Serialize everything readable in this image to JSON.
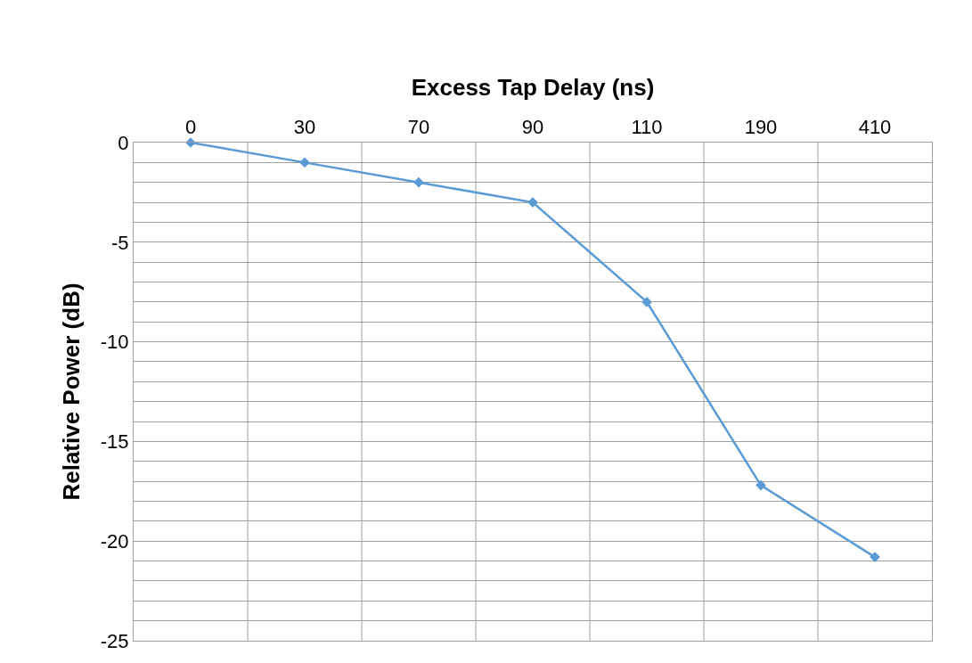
{
  "chart_data": {
    "type": "line",
    "xlabel": "Excess Tap Delay (ns)",
    "ylabel": "Relative Power (dB)",
    "categories": [
      "0",
      "30",
      "70",
      "90",
      "110",
      "190",
      "410"
    ],
    "series": [
      {
        "color": "#5b9bd5",
        "values": [
          0,
          -1,
          -2,
          -3,
          -8,
          -17.2,
          -20.8
        ]
      }
    ],
    "ylim": [
      -25,
      0
    ],
    "yticks": [
      0,
      {
        "value": -1,
        "label": null
      },
      {
        "value": -2,
        "label": null
      },
      {
        "value": -3,
        "label": null
      },
      {
        "value": -4,
        "label": null
      },
      -5,
      {
        "value": -6,
        "label": null
      },
      {
        "value": -7,
        "label": null
      },
      {
        "value": -8,
        "label": null
      },
      {
        "value": -9,
        "label": null
      },
      -10,
      {
        "value": -11,
        "label": null
      },
      {
        "value": -12,
        "label": null
      },
      {
        "value": -13,
        "label": null
      },
      {
        "value": -14,
        "label": null
      },
      -15,
      {
        "value": -16,
        "label": null
      },
      {
        "value": -17,
        "label": null
      },
      {
        "value": -18,
        "label": null
      },
      {
        "value": -19,
        "label": null
      },
      -20,
      {
        "value": -21,
        "label": null
      },
      {
        "value": -22,
        "label": null
      },
      {
        "value": -23,
        "label": null
      },
      {
        "value": -24,
        "label": null
      },
      -25
    ],
    "grid": true,
    "marker": "diamond",
    "line_style": "solid",
    "legend": false
  }
}
